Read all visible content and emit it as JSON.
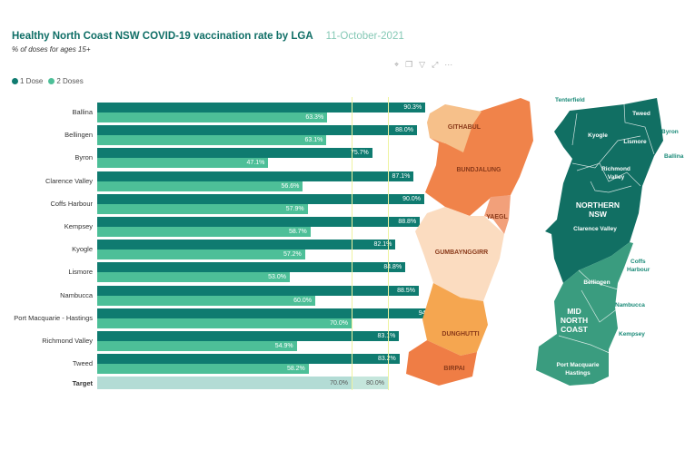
{
  "header": {
    "title": "Healthy North Coast NSW COVID-19 vaccination rate by LGA",
    "date": "11-October-2021",
    "subtitle": "% of doses for ages 15+"
  },
  "toolbar_icons": [
    "pin-icon",
    "copy-icon",
    "filter-icon",
    "expand-icon",
    "more-icon"
  ],
  "chart_data": {
    "type": "bar",
    "title": "Healthy North Coast NSW COVID-19 vaccination rate by LGA",
    "subtitle": "% of doses for ages 15+",
    "orientation": "horizontal",
    "categories": [
      "Ballina",
      "Bellingen",
      "Byron",
      "Clarence Valley",
      "Coffs Harbour",
      "Kempsey",
      "Kyogle",
      "Lismore",
      "Nambucca",
      "Port Macquarie - Hastings",
      "Richmond Valley",
      "Tweed"
    ],
    "series": [
      {
        "name": "1 Dose",
        "color": "#0f7b70",
        "values": [
          90.3,
          88.0,
          75.7,
          87.1,
          90.0,
          88.8,
          82.1,
          84.8,
          88.5,
          94.4,
          83.1,
          83.2
        ],
        "labels": [
          "90.3%",
          "88.0%",
          "75.7%",
          "87.1%",
          "90.0%",
          "88.8%",
          "82.1%",
          "84.8%",
          "88.5%",
          "94.4%",
          "83.1%",
          "83.2%"
        ]
      },
      {
        "name": "2 Doses",
        "color": "#4dbf98",
        "values": [
          63.3,
          63.1,
          47.1,
          56.6,
          57.9,
          58.7,
          57.2,
          53.0,
          60.0,
          70.0,
          54.9,
          58.2
        ],
        "labels": [
          "63.3%",
          "63.1%",
          "47.1%",
          "56.6%",
          "57.9%",
          "58.7%",
          "57.2%",
          "53.0%",
          "60.0%",
          "70.0%",
          "54.9%",
          "58.2%"
        ]
      }
    ],
    "target": {
      "label": "Target",
      "values": [
        70.0,
        80.0
      ],
      "labels": [
        "70.0%",
        "80.0%"
      ]
    },
    "xlim": [
      0,
      100
    ]
  },
  "map_left": {
    "regions": [
      "GITHABUL",
      "BUNDJALUNG",
      "YAEGL",
      "GUMBAYNGGIRR",
      "DUNGHUTTI",
      "BIRPAI"
    ]
  },
  "map_right": {
    "regions": [
      "NORTHERN NSW",
      "MID NORTH COAST"
    ],
    "region_lines": [
      "NORTHERN",
      "NSW",
      "MID",
      "NORTH",
      "COAST"
    ],
    "lgas": [
      "Tenterfield",
      "Tweed",
      "Kyogle",
      "Lismore",
      "Byron",
      "Ballina",
      "Richmond",
      "Valley",
      "Clarence Valley",
      "Coffs",
      "Harbour",
      "Bellingen",
      "Nambucca",
      "Kempsey",
      "Port Macquarie",
      "Hastings"
    ]
  }
}
